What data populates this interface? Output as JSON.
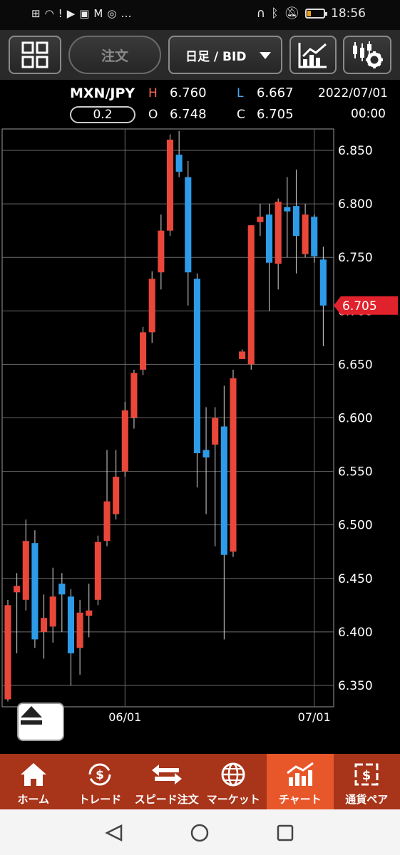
{
  "status_bar": {
    "time": "18:56",
    "battery_level": 0.2
  },
  "toolbar": {
    "order_label": "注文",
    "period_label": "日足 / BID"
  },
  "info": {
    "pair": "MXN/JPY",
    "spread": "0.2",
    "high_label": "H",
    "high": "6.760",
    "low_label": "L",
    "low": "6.667",
    "open_label": "O",
    "open": "6.748",
    "close_label": "C",
    "close": "6.705",
    "date": "2022/07/01",
    "time": "00:00"
  },
  "chart_data": {
    "type": "candlestick",
    "current_price": "6.705",
    "y_ticks": [
      "6.850",
      "6.800",
      "6.750",
      "6.700",
      "6.650",
      "6.600",
      "6.550",
      "6.500",
      "6.450",
      "6.400",
      "6.350"
    ],
    "x_ticks": [
      "06/01",
      "07/01"
    ],
    "ylim": [
      6.33,
      6.87
    ],
    "up_color": "#e8473a",
    "down_color": "#2d9be8",
    "candles": [
      {
        "o": 6.337,
        "h": 6.43,
        "l": 6.335,
        "c": 6.425
      },
      {
        "o": 6.437,
        "h": 6.455,
        "l": 6.38,
        "c": 6.443
      },
      {
        "o": 6.43,
        "h": 6.505,
        "l": 6.42,
        "c": 6.485
      },
      {
        "o": 6.483,
        "h": 6.495,
        "l": 6.385,
        "c": 6.393
      },
      {
        "o": 6.4,
        "h": 6.435,
        "l": 6.375,
        "c": 6.413
      },
      {
        "o": 6.405,
        "h": 6.46,
        "l": 6.39,
        "c": 6.433
      },
      {
        "o": 6.445,
        "h": 6.455,
        "l": 6.4,
        "c": 6.435
      },
      {
        "o": 6.433,
        "h": 6.44,
        "l": 6.35,
        "c": 6.38
      },
      {
        "o": 6.385,
        "h": 6.43,
        "l": 6.36,
        "c": 6.418
      },
      {
        "o": 6.415,
        "h": 6.445,
        "l": 6.395,
        "c": 6.42
      },
      {
        "o": 6.43,
        "h": 6.49,
        "l": 6.425,
        "c": 6.484
      },
      {
        "o": 6.485,
        "h": 6.57,
        "l": 6.48,
        "c": 6.522
      },
      {
        "o": 6.51,
        "h": 6.57,
        "l": 6.505,
        "c": 6.545
      },
      {
        "o": 6.55,
        "h": 6.615,
        "l": 6.545,
        "c": 6.607
      },
      {
        "o": 6.6,
        "h": 6.645,
        "l": 6.59,
        "c": 6.642
      },
      {
        "o": 6.645,
        "h": 6.685,
        "l": 6.64,
        "c": 6.68
      },
      {
        "o": 6.68,
        "h": 6.737,
        "l": 6.67,
        "c": 6.73
      },
      {
        "o": 6.736,
        "h": 6.79,
        "l": 6.72,
        "c": 6.775
      },
      {
        "o": 6.775,
        "h": 6.865,
        "l": 6.77,
        "c": 6.86
      },
      {
        "o": 6.846,
        "h": 6.868,
        "l": 6.825,
        "c": 6.83
      },
      {
        "o": 6.825,
        "h": 6.84,
        "l": 6.705,
        "c": 6.736
      },
      {
        "o": 6.73,
        "h": 6.735,
        "l": 6.535,
        "c": 6.567
      },
      {
        "o": 6.57,
        "h": 6.61,
        "l": 6.51,
        "c": 6.563
      },
      {
        "o": 6.575,
        "h": 6.61,
        "l": 6.48,
        "c": 6.6
      },
      {
        "o": 6.592,
        "h": 6.63,
        "l": 6.393,
        "c": 6.472
      },
      {
        "o": 6.475,
        "h": 6.645,
        "l": 6.47,
        "c": 6.637
      },
      {
        "o": 6.655,
        "h": 6.664,
        "l": 6.66,
        "c": 6.662
      },
      {
        "o": 6.65,
        "h": 6.78,
        "l": 6.645,
        "c": 6.78
      },
      {
        "o": 6.783,
        "h": 6.8,
        "l": 6.77,
        "c": 6.788
      },
      {
        "o": 6.79,
        "h": 6.8,
        "l": 6.7,
        "c": 6.745
      },
      {
        "o": 6.744,
        "h": 6.805,
        "l": 6.72,
        "c": 6.802
      },
      {
        "o": 6.797,
        "h": 6.825,
        "l": 6.75,
        "c": 6.793
      },
      {
        "o": 6.798,
        "h": 6.832,
        "l": 6.735,
        "c": 6.77
      },
      {
        "o": 6.753,
        "h": 6.8,
        "l": 6.75,
        "c": 6.79
      },
      {
        "o": 6.788,
        "h": 6.79,
        "l": 6.745,
        "c": 6.751
      },
      {
        "o": 6.748,
        "h": 6.76,
        "l": 6.667,
        "c": 6.705
      }
    ]
  },
  "bottom_nav": {
    "items": [
      {
        "label": "ホーム",
        "icon": "home-icon",
        "active": false
      },
      {
        "label": "トレード",
        "icon": "yen-cycle-icon",
        "active": false
      },
      {
        "label": "スピード注文",
        "icon": "exchange-arrows-icon",
        "active": false
      },
      {
        "label": "マーケット",
        "icon": "globe-icon",
        "active": false
      },
      {
        "label": "チャート",
        "icon": "chart-icon",
        "active": true
      },
      {
        "label": "通貨ペア",
        "icon": "currency-pair-icon",
        "active": false
      }
    ]
  }
}
